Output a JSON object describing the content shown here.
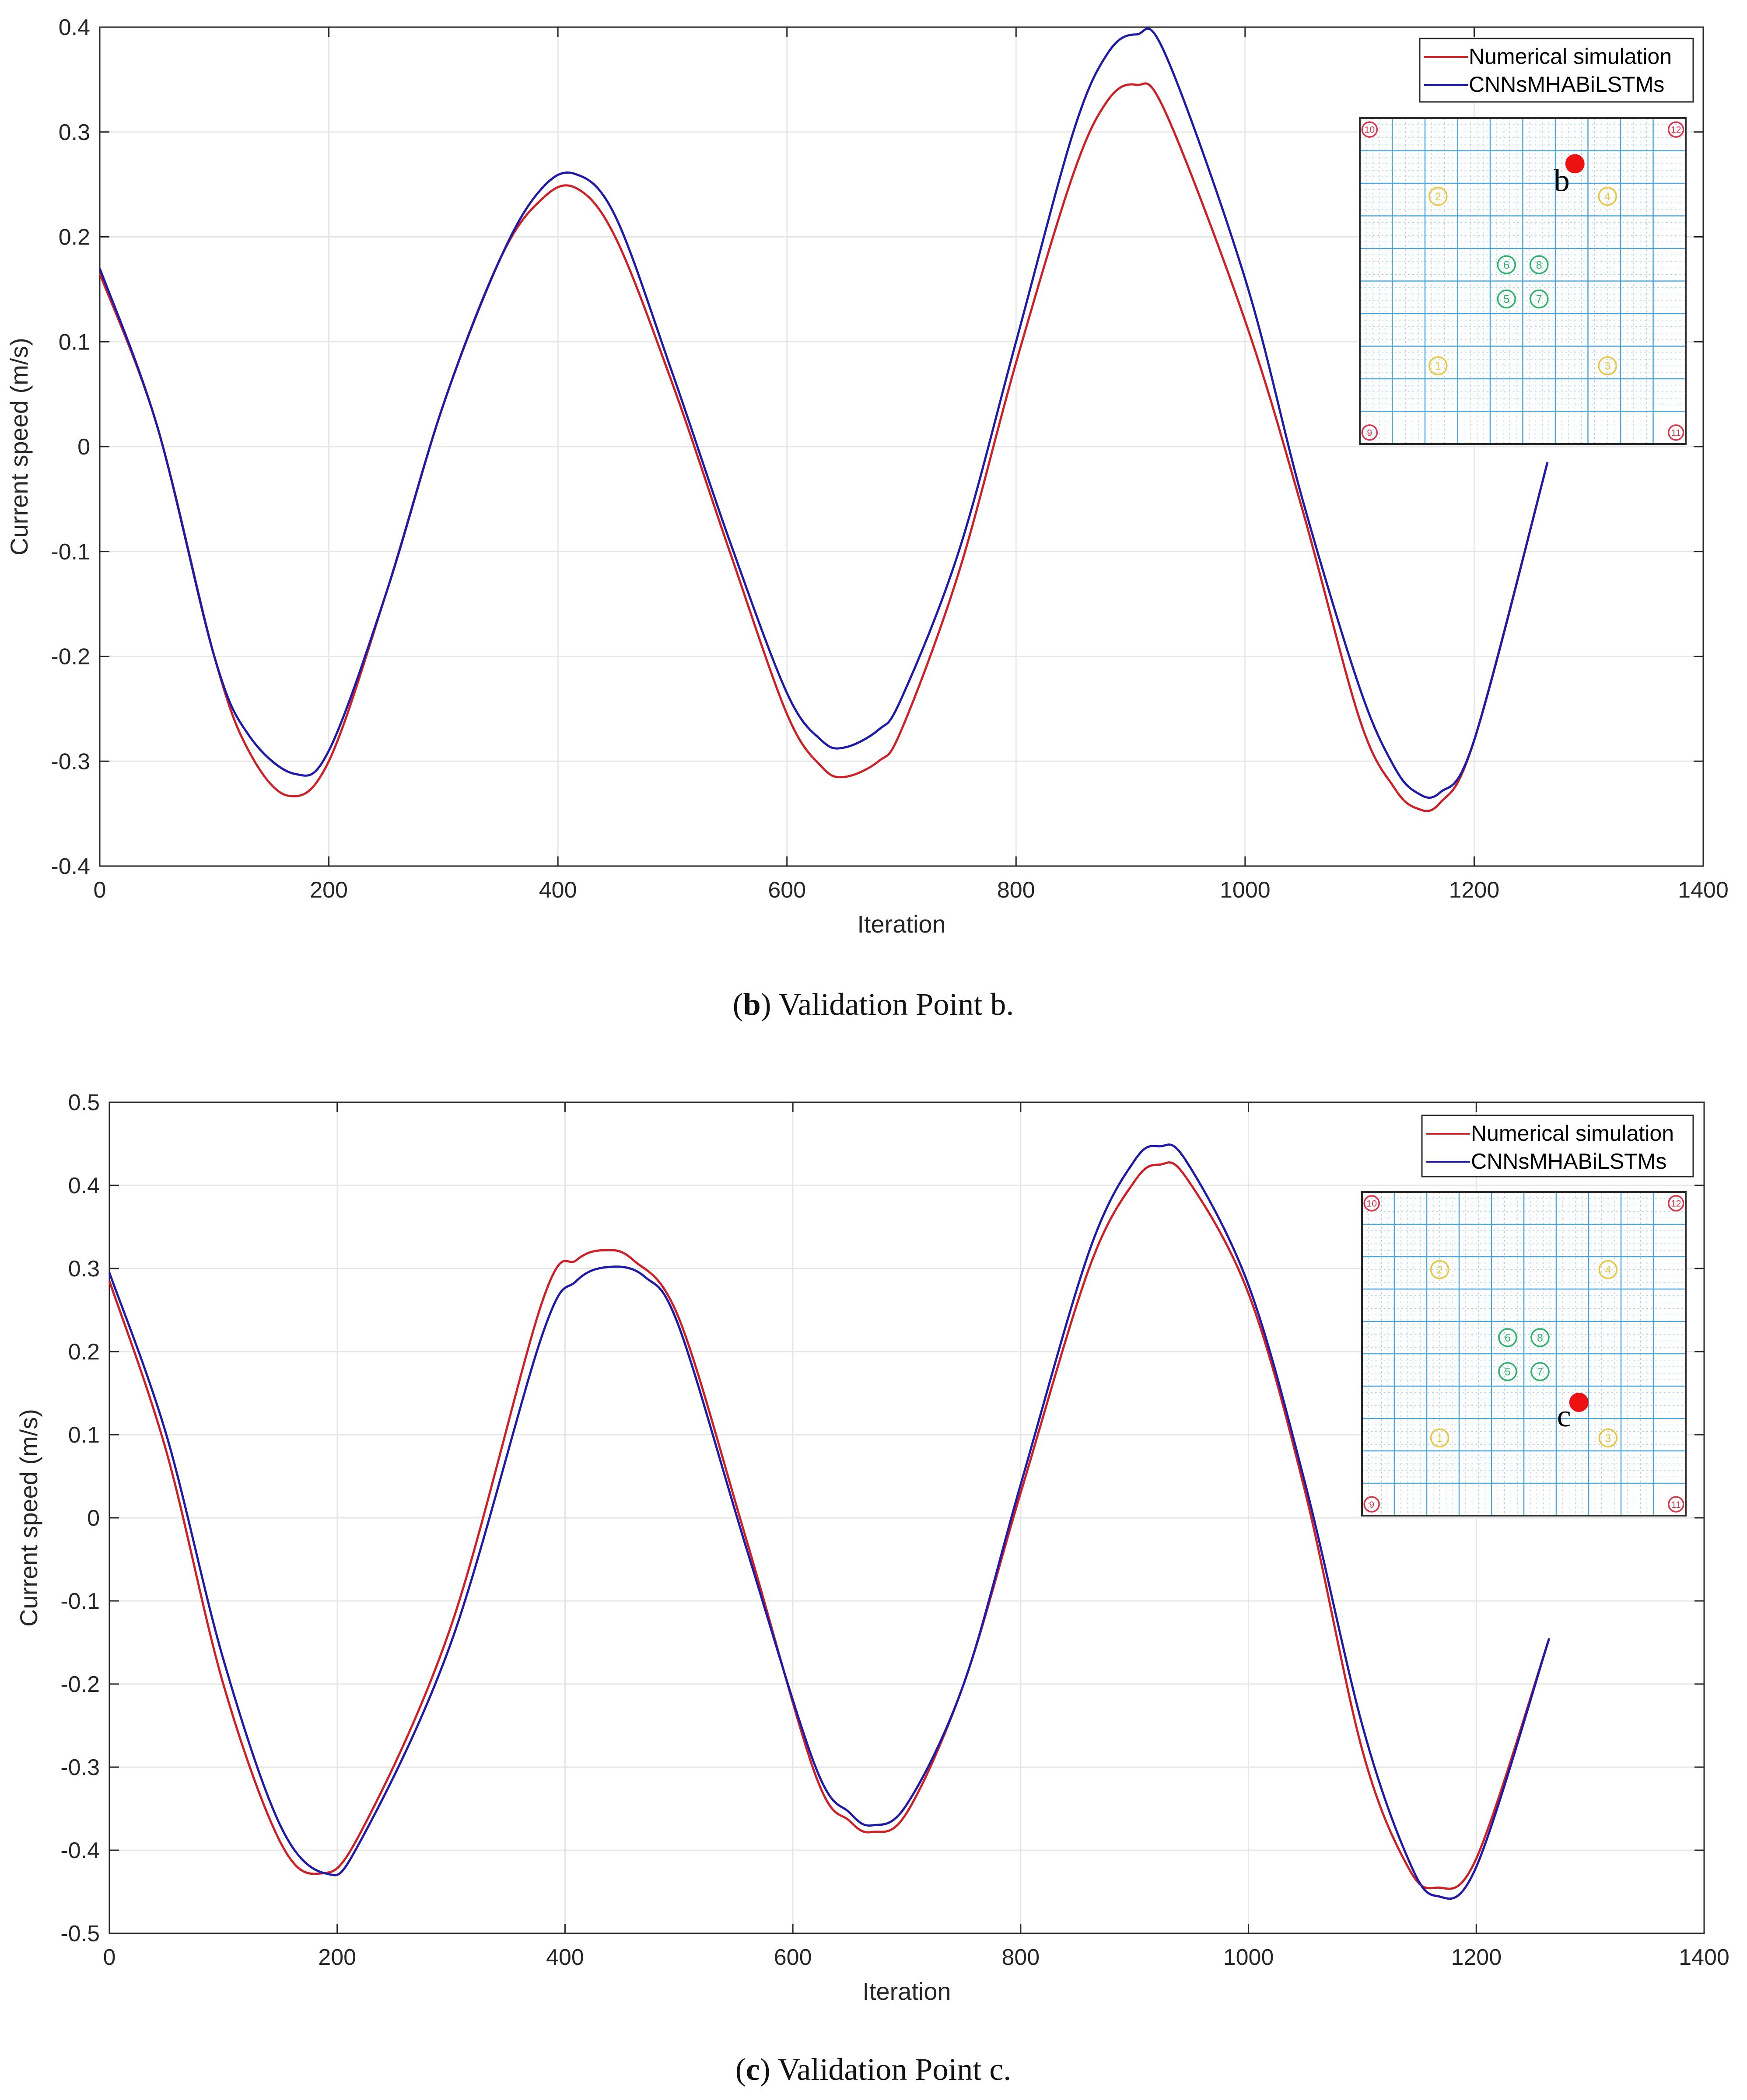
{
  "colors": {
    "numerical": "#cc2127",
    "predicted": "#1f1aa8",
    "grid": "#e6e6e6",
    "axis": "#262626",
    "inset_grid": "#4aa6d8",
    "red_marker": "#ee1111",
    "yellow_marker": "#e9c63c",
    "green_marker": "#2fb36a",
    "corner_marker": "#d9344a"
  },
  "legend": {
    "numerical": "Numerical simulation",
    "predicted": "CNNsMHABiLSTMs"
  },
  "inset": {
    "corner_labels": [
      "10",
      "12",
      "9",
      "11"
    ],
    "yellow_labels": [
      "2",
      "4",
      "1",
      "3"
    ],
    "green_labels": [
      "6",
      "8",
      "5",
      "7"
    ]
  },
  "chart_data": [
    {
      "type": "line",
      "panel": "b",
      "caption_letter": "b",
      "caption_text": "Validation Point b.",
      "xlabel": "Iteration",
      "ylabel": "Current speed (m/s)",
      "xlim": [
        0,
        1400
      ],
      "ylim": [
        -0.4,
        0.4
      ],
      "xticks": [
        0,
        200,
        400,
        600,
        800,
        1000,
        1200,
        1400
      ],
      "yticks": [
        -0.4,
        -0.3,
        -0.2,
        -0.1,
        0,
        0.1,
        0.2,
        0.3,
        0.4
      ],
      "ytick_labels": [
        "-0.4",
        "-0.3",
        "-0.2",
        "-0.1",
        "0",
        "0.1",
        "0.2",
        "0.3",
        "0.4"
      ],
      "grid": true,
      "legend_position": "top-right",
      "inset_point_label": "b",
      "series": [
        {
          "name": "Numerical simulation",
          "x": [
            0,
            50,
            100,
            130,
            165,
            200,
            250,
            300,
            350,
            385,
            415,
            450,
            500,
            550,
            600,
            630,
            650,
            680,
            700,
            750,
            800,
            850,
            880,
            905,
            930,
            1000,
            1050,
            1100,
            1130,
            1150,
            1170,
            1200,
            1264
          ],
          "y": [
            0.165,
            0.02,
            -0.2,
            -0.29,
            -0.333,
            -0.3,
            -0.14,
            0.04,
            0.18,
            0.235,
            0.247,
            0.2,
            0.06,
            -0.1,
            -0.255,
            -0.305,
            -0.315,
            -0.3,
            -0.27,
            -0.12,
            0.08,
            0.26,
            0.33,
            0.345,
            0.32,
            0.12,
            -0.06,
            -0.26,
            -0.325,
            -0.345,
            -0.34,
            -0.28,
            -0.015
          ]
        },
        {
          "name": "CNNsMHABiLSTMs",
          "x": [
            0,
            50,
            100,
            130,
            170,
            200,
            250,
            300,
            350,
            385,
            415,
            450,
            500,
            550,
            600,
            630,
            650,
            680,
            700,
            750,
            800,
            850,
            880,
            905,
            930,
            1000,
            1050,
            1100,
            1130,
            1150,
            1170,
            1200,
            1264
          ],
          "y": [
            0.17,
            0.02,
            -0.2,
            -0.275,
            -0.312,
            -0.29,
            -0.14,
            0.04,
            0.18,
            0.245,
            0.26,
            0.22,
            0.07,
            -0.09,
            -0.235,
            -0.28,
            -0.287,
            -0.27,
            -0.24,
            -0.1,
            0.1,
            0.3,
            0.375,
            0.393,
            0.375,
            0.16,
            -0.05,
            -0.23,
            -0.305,
            -0.33,
            -0.33,
            -0.28,
            -0.015
          ]
        }
      ]
    },
    {
      "type": "line",
      "panel": "c",
      "caption_letter": "c",
      "caption_text": "Validation Point c.",
      "xlabel": "Iteration",
      "ylabel": "Current speed (m/s)",
      "xlim": [
        0,
        1400
      ],
      "ylim": [
        -0.5,
        0.5
      ],
      "xticks": [
        0,
        200,
        400,
        600,
        800,
        1000,
        1200,
        1400
      ],
      "yticks": [
        -0.5,
        -0.4,
        -0.3,
        -0.2,
        -0.1,
        0,
        0.1,
        0.2,
        0.3,
        0.4,
        0.5
      ],
      "ytick_labels": [
        "-0.5",
        "-0.4",
        "-0.3",
        "-0.2",
        "-0.1",
        "0",
        "0.1",
        "0.2",
        "0.3",
        "0.4",
        "0.5"
      ],
      "grid": true,
      "legend_position": "top-right",
      "inset_point_label": "c",
      "series": [
        {
          "name": "Numerical simulation",
          "x": [
            0,
            50,
            100,
            150,
            185,
            220,
            300,
            380,
            410,
            435,
            460,
            500,
            560,
            620,
            650,
            670,
            700,
            750,
            800,
            860,
            900,
            922,
            945,
            1000,
            1050,
            1100,
            1140,
            1165,
            1200,
            1264
          ],
          "y": [
            0.285,
            0.08,
            -0.2,
            -0.39,
            -0.428,
            -0.38,
            -0.13,
            0.26,
            0.31,
            0.322,
            0.31,
            0.24,
            -0.03,
            -0.31,
            -0.365,
            -0.378,
            -0.355,
            -0.2,
            0.03,
            0.3,
            0.405,
            0.425,
            0.41,
            0.27,
            0.03,
            -0.28,
            -0.42,
            -0.445,
            -0.41,
            -0.145
          ],
          "predicted": false
        },
        {
          "name": "CNNsMHABiLSTMs",
          "x": [
            0,
            50,
            100,
            150,
            190,
            220,
            300,
            380,
            410,
            440,
            470,
            500,
            560,
            620,
            650,
            670,
            700,
            750,
            800,
            860,
            900,
            922,
            945,
            1000,
            1050,
            1100,
            1140,
            1165,
            1200,
            1264
          ],
          "y": [
            0.295,
            0.1,
            -0.17,
            -0.37,
            -0.428,
            -0.39,
            -0.15,
            0.22,
            0.285,
            0.302,
            0.29,
            0.23,
            -0.04,
            -0.3,
            -0.355,
            -0.37,
            -0.345,
            -0.2,
            0.04,
            0.32,
            0.43,
            0.447,
            0.43,
            0.28,
            0.04,
            -0.25,
            -0.41,
            -0.455,
            -0.42,
            -0.145
          ]
        }
      ]
    }
  ]
}
